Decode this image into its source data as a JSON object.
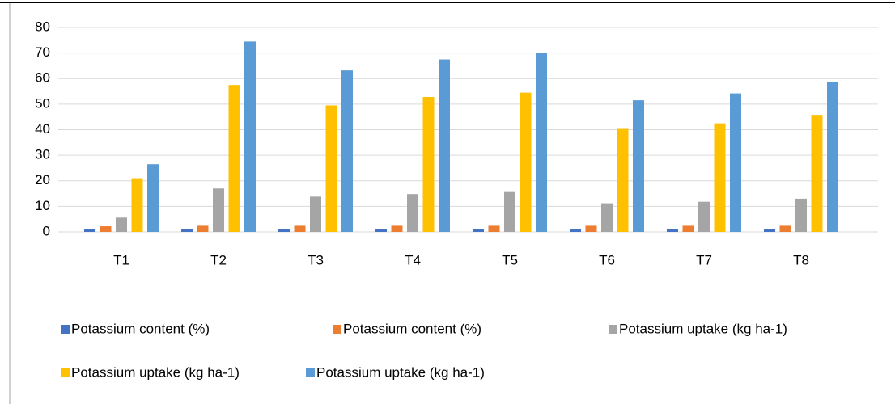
{
  "chart_data": {
    "type": "bar",
    "categories": [
      "T1",
      "T2",
      "T3",
      "T4",
      "T5",
      "T6",
      "T7",
      "T8"
    ],
    "series": [
      {
        "name": "Potassium content (%)",
        "color": "#4472c4",
        "values": [
          1.1,
          1.1,
          1.1,
          1.1,
          1.1,
          1.1,
          1.1,
          1.1
        ]
      },
      {
        "name": "Potassium content (%)",
        "color": "#ed7d31",
        "values": [
          2.2,
          2.4,
          2.4,
          2.4,
          2.4,
          2.4,
          2.4,
          2.4
        ]
      },
      {
        "name": "Potassium uptake (kg ha-1)",
        "color": "#a5a5a5",
        "values": [
          5.6,
          17,
          13.8,
          14.8,
          15.6,
          11.2,
          11.8,
          13
        ]
      },
      {
        "name": "Potassium uptake (kg ha-1)",
        "color": "#ffc000",
        "values": [
          21,
          57.5,
          49.5,
          52.8,
          54.5,
          40.3,
          42.5,
          45.8
        ]
      },
      {
        "name": "Potassium uptake (kg ha-1)",
        "color": "#5b9bd5",
        "values": [
          26.5,
          74.5,
          63.2,
          67.5,
          70.2,
          51.5,
          54.2,
          58.5
        ]
      }
    ],
    "ylim": [
      0,
      80
    ],
    "yticks": [
      0,
      10,
      20,
      30,
      40,
      50,
      60,
      70,
      80
    ],
    "grid": true,
    "legend": "bottom"
  }
}
